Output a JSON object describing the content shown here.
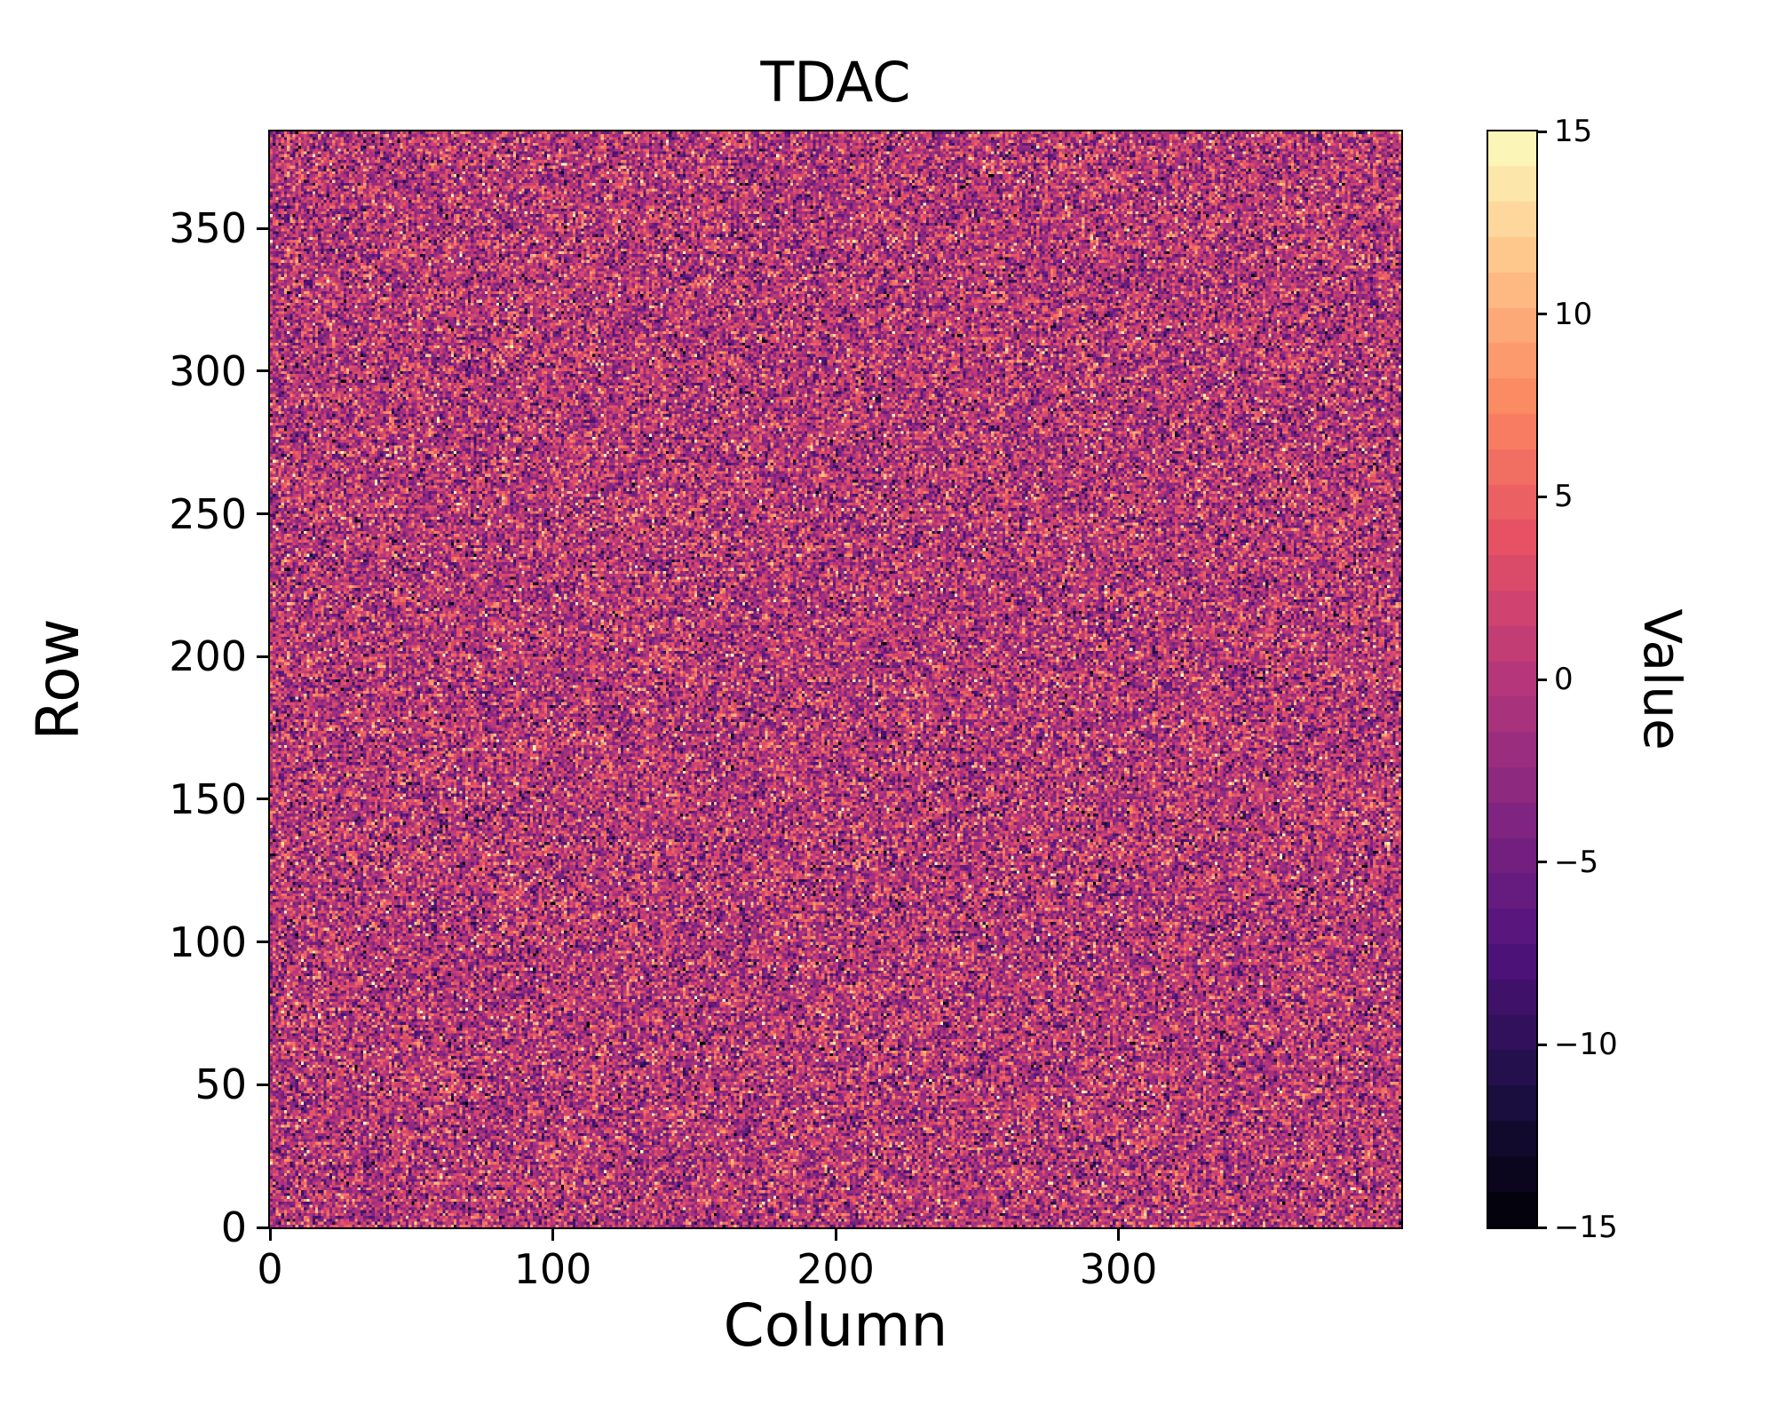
{
  "chart_data": {
    "type": "heatmap",
    "title": "TDAC",
    "xlabel": "Column",
    "ylabel": "Row",
    "colorbar_label": "Value",
    "x_range": [
      0,
      400
    ],
    "y_range": [
      0,
      384
    ],
    "value_range": [
      -15,
      15
    ],
    "x_ticks": [
      {
        "value": 0,
        "label": "0"
      },
      {
        "value": 100,
        "label": "100"
      },
      {
        "value": 200,
        "label": "200"
      },
      {
        "value": 300,
        "label": "300"
      }
    ],
    "y_ticks": [
      {
        "value": 0,
        "label": "0"
      },
      {
        "value": 50,
        "label": "50"
      },
      {
        "value": 100,
        "label": "100"
      },
      {
        "value": 150,
        "label": "150"
      },
      {
        "value": 200,
        "label": "200"
      },
      {
        "value": 250,
        "label": "250"
      },
      {
        "value": 300,
        "label": "300"
      },
      {
        "value": 350,
        "label": "350"
      }
    ],
    "colorbar_ticks": [
      {
        "value": 15,
        "label": "15"
      },
      {
        "value": 10,
        "label": "10"
      },
      {
        "value": 5,
        "label": "5"
      },
      {
        "value": 0,
        "label": "0"
      },
      {
        "value": -5,
        "label": "−5"
      },
      {
        "value": -10,
        "label": "−10"
      },
      {
        "value": -15,
        "label": "−15"
      }
    ],
    "colormap": "magma",
    "colormap_colors": [
      "#000004",
      "#1c1044",
      "#4f127b",
      "#812581",
      "#b5367a",
      "#e55064",
      "#fb8761",
      "#fec287",
      "#fcfdbf"
    ],
    "colorbar_levels": 31,
    "grid": {
      "columns": 400,
      "rows": 384
    },
    "data_summary": {
      "description": "per-pixel TDAC values, random noise centered near 0 spanning full -15..15 range",
      "distribution": "gaussian",
      "mean": 0,
      "std": 5,
      "clip": [
        -15,
        15
      ],
      "integer_values": true,
      "seed": 42
    },
    "legend_position": "right-colorbar",
    "grid_lines": false,
    "background_color": "#ffffff",
    "text_color": "#000000"
  }
}
